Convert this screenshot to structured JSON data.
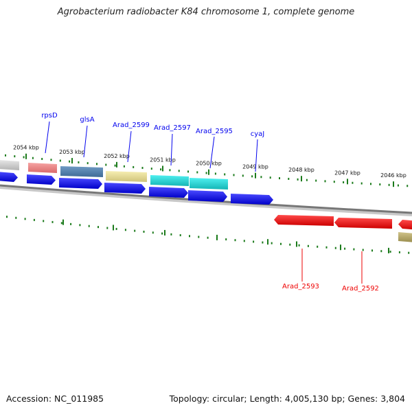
{
  "title": "Agrobacterium radiobacter K84 chromosome 1, complete genome",
  "footer": {
    "accession": "Accession: NC_011985",
    "summary": "Topology: circular; Length: 4,005,130 bp; Genes: 3,804"
  },
  "colors": {
    "forward_gene": "#0000ee",
    "reverse_gene": "#ee0000",
    "tick": "#1a7a1a",
    "backbone": "#777777"
  },
  "ticks": [
    "2054 kbp",
    "2053 kbp",
    "2052 kbp",
    "2051 kbp",
    "2050 kbp",
    "2049 kbp",
    "2048 kbp",
    "2047 kbp",
    "2046 kbp"
  ],
  "forward_labels": [
    "rpsD",
    "glsA",
    "Arad_2599",
    "Arad_2597",
    "Arad_2595",
    "cyaJ"
  ],
  "reverse_labels": [
    "Arad_2593",
    "Arad_2592"
  ]
}
